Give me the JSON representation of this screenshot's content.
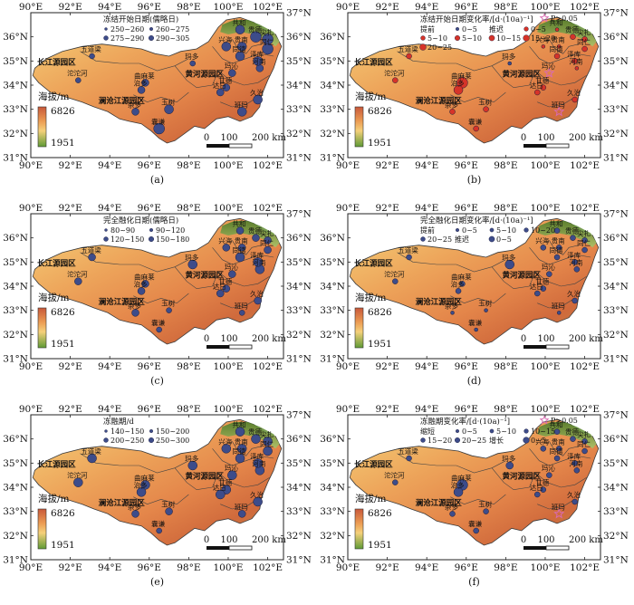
{
  "colors": {
    "terrain_low": "#f2c46b",
    "terrain_mid": "#e98e4a",
    "terrain_high": "#c85a38",
    "terrain_green": "#5d8f2f",
    "terrain_green_light": "#9fc166",
    "marker_blue": "#3d4c8a",
    "marker_red": "#d63329",
    "star_pink": "#d86ab1",
    "outline": "#3a3a3a"
  },
  "axes": {
    "lon_labels": [
      "90°E",
      "92°E",
      "94°E",
      "96°E",
      "98°E",
      "100°E",
      "102°E"
    ],
    "lat_labels_left": [
      "36°N",
      "35°N",
      "34°N",
      "33°N",
      "32°N",
      "31°N"
    ],
    "lat_labels_right": [
      "37°N",
      "36°N",
      "35°N",
      "34°N",
      "33°N",
      "32°N",
      "31°N"
    ]
  },
  "regions": [
    "长江源园区",
    "黄河源园区",
    "澜沧江源园区"
  ],
  "stations": [
    {
      "id": "wudaoliang",
      "name": "五道梁",
      "lon": 93.1,
      "lat": 35.2
    },
    {
      "id": "tuotuohe",
      "name": "沱沱河",
      "lon": 92.4,
      "lat": 34.2
    },
    {
      "id": "qumalai",
      "name": "曲麻莱",
      "lon": 95.8,
      "lat": 34.1
    },
    {
      "id": "zhiduo",
      "name": "治多",
      "lon": 95.6,
      "lat": 33.8
    },
    {
      "id": "zaduo",
      "name": "杂多",
      "lon": 95.3,
      "lat": 32.9
    },
    {
      "id": "yushu",
      "name": "玉树",
      "lon": 97.0,
      "lat": 33.0
    },
    {
      "id": "nangqian",
      "name": "囊谦",
      "lon": 96.5,
      "lat": 32.2
    },
    {
      "id": "madoi",
      "name": "玛多",
      "lon": 98.2,
      "lat": 34.9
    },
    {
      "id": "maqin",
      "name": "玛沁",
      "lon": 100.2,
      "lat": 34.5
    },
    {
      "id": "gande",
      "name": "甘德",
      "lon": 99.9,
      "lat": 33.9
    },
    {
      "id": "dari",
      "name": "达日",
      "lon": 99.6,
      "lat": 33.7
    },
    {
      "id": "jiuzhi",
      "name": "久治",
      "lon": 101.5,
      "lat": 33.4
    },
    {
      "id": "banma",
      "name": "班玛",
      "lon": 100.7,
      "lat": 32.9
    },
    {
      "id": "henan",
      "name": "河南",
      "lon": 101.6,
      "lat": 34.7
    },
    {
      "id": "tongde",
      "name": "同德",
      "lon": 100.6,
      "lat": 35.2
    },
    {
      "id": "zeku",
      "name": "泽库",
      "lon": 101.5,
      "lat": 35.0
    },
    {
      "id": "xinghai",
      "name": "兴海",
      "lon": 99.9,
      "lat": 35.6
    },
    {
      "id": "gonghe",
      "name": "共和",
      "lon": 100.6,
      "lat": 36.3
    },
    {
      "id": "guinan",
      "name": "贵南",
      "lon": 100.7,
      "lat": 35.6
    },
    {
      "id": "guide",
      "name": "贵德",
      "lon": 101.4,
      "lat": 36.0
    },
    {
      "id": "jianzha",
      "name": "尖扎",
      "lon": 102.0,
      "lat": 35.9
    },
    {
      "id": "tongren",
      "name": "同仁",
      "lon": 102.0,
      "lat": 35.5
    }
  ],
  "elevation": {
    "title": "海拔/m",
    "max": "6826",
    "min": "1951"
  },
  "scalebar": {
    "labels": [
      "0",
      "100",
      "200 km"
    ]
  },
  "panels": [
    {
      "letter": "(a)",
      "legend_title": "冻结开始日期(儒略日)",
      "legend_items": [
        "250~260",
        "260~275",
        "275~290",
        "290~305"
      ],
      "legend_extra": [],
      "markers": [
        {
          "s": "wudaoliang",
          "r": 3,
          "c": "blue"
        },
        {
          "s": "tuotuohe",
          "r": 3,
          "c": "blue"
        },
        {
          "s": "qumalai",
          "r": 4,
          "c": "blue"
        },
        {
          "s": "zhiduo",
          "r": 4,
          "c": "blue"
        },
        {
          "s": "zaduo",
          "r": 4,
          "c": "blue"
        },
        {
          "s": "yushu",
          "r": 5,
          "c": "blue"
        },
        {
          "s": "nangqian",
          "r": 6,
          "c": "blue"
        },
        {
          "s": "madoi",
          "r": 3,
          "c": "blue"
        },
        {
          "s": "maqin",
          "r": 4,
          "c": "blue"
        },
        {
          "s": "gande",
          "r": 4,
          "c": "blue"
        },
        {
          "s": "dari",
          "r": 4,
          "c": "blue"
        },
        {
          "s": "jiuzhi",
          "r": 5,
          "c": "blue"
        },
        {
          "s": "banma",
          "r": 5,
          "c": "blue"
        },
        {
          "s": "henan",
          "r": 4,
          "c": "blue"
        },
        {
          "s": "tongde",
          "r": 5,
          "c": "blue"
        },
        {
          "s": "zeku",
          "r": 5,
          "c": "blue"
        },
        {
          "s": "xinghai",
          "r": 5,
          "c": "blue"
        },
        {
          "s": "gonghe",
          "r": 5,
          "c": "blue"
        },
        {
          "s": "guinan",
          "r": 5,
          "c": "blue"
        },
        {
          "s": "guide",
          "r": 6,
          "c": "blue"
        },
        {
          "s": "jianzha",
          "r": 6,
          "c": "blue"
        },
        {
          "s": "tongren",
          "r": 6,
          "c": "blue"
        }
      ]
    },
    {
      "letter": "(b)",
      "legend_title": "冻结开始日期变化率/[d·(10a)⁻¹]",
      "legend_items": [
        "提前",
        "0~5",
        "推迟",
        "0~5",
        "5~10",
        "5~10",
        "10~15",
        "15~20",
        "20~25"
      ],
      "legend_extra": [
        "P>0.05"
      ],
      "markers": [
        {
          "s": "wudaoliang",
          "r": 3,
          "c": "red"
        },
        {
          "s": "tuotuohe",
          "r": 3,
          "c": "red"
        },
        {
          "s": "qumalai",
          "r": 6,
          "c": "red"
        },
        {
          "s": "zhiduo",
          "r": 5,
          "c": "red"
        },
        {
          "s": "zaduo",
          "r": 3,
          "c": "red"
        },
        {
          "s": "yushu",
          "r": 3,
          "c": "red"
        },
        {
          "s": "nangqian",
          "r": 3,
          "c": "red"
        },
        {
          "s": "madoi",
          "r": 2,
          "c": "blue"
        },
        {
          "s": "maqin",
          "r": 3,
          "c": "star"
        },
        {
          "s": "gande",
          "r": 3,
          "c": "red"
        },
        {
          "s": "dari",
          "r": 3,
          "c": "red"
        },
        {
          "s": "jiuzhi",
          "r": 3,
          "c": "red"
        },
        {
          "s": "banma",
          "r": 3,
          "c": "star"
        },
        {
          "s": "henan",
          "r": 2,
          "c": "red"
        },
        {
          "s": "tongde",
          "r": 3,
          "c": "red"
        },
        {
          "s": "zeku",
          "r": 3,
          "c": "red"
        },
        {
          "s": "xinghai",
          "r": 2,
          "c": "red"
        },
        {
          "s": "gonghe",
          "r": 2,
          "c": "red"
        },
        {
          "s": "guinan",
          "r": 2,
          "c": "red"
        },
        {
          "s": "guide",
          "r": 3,
          "c": "red"
        },
        {
          "s": "jianzha",
          "r": 3,
          "c": "red"
        },
        {
          "s": "tongren",
          "r": 3,
          "c": "red"
        }
      ]
    },
    {
      "letter": "(c)",
      "legend_title": "完全融化日期(儒略日)",
      "legend_items": [
        "80~90",
        "90~120",
        "120~150",
        "150~180"
      ],
      "legend_extra": [],
      "markers": [
        {
          "s": "wudaoliang",
          "r": 4,
          "c": "blue"
        },
        {
          "s": "tuotuohe",
          "r": 4,
          "c": "blue"
        },
        {
          "s": "qumalai",
          "r": 4,
          "c": "blue"
        },
        {
          "s": "zhiduo",
          "r": 4,
          "c": "blue"
        },
        {
          "s": "zaduo",
          "r": 4,
          "c": "blue"
        },
        {
          "s": "yushu",
          "r": 3,
          "c": "blue"
        },
        {
          "s": "nangqian",
          "r": 3,
          "c": "blue"
        },
        {
          "s": "madoi",
          "r": 5,
          "c": "blue"
        },
        {
          "s": "maqin",
          "r": 4,
          "c": "blue"
        },
        {
          "s": "gande",
          "r": 4,
          "c": "blue"
        },
        {
          "s": "dari",
          "r": 4,
          "c": "blue"
        },
        {
          "s": "jiuzhi",
          "r": 4,
          "c": "blue"
        },
        {
          "s": "banma",
          "r": 3,
          "c": "blue"
        },
        {
          "s": "henan",
          "r": 5,
          "c": "blue"
        },
        {
          "s": "tongde",
          "r": 5,
          "c": "blue"
        },
        {
          "s": "zeku",
          "r": 5,
          "c": "blue"
        },
        {
          "s": "xinghai",
          "r": 4,
          "c": "blue"
        },
        {
          "s": "gonghe",
          "r": 4,
          "c": "blue"
        },
        {
          "s": "guinan",
          "r": 4,
          "c": "blue"
        },
        {
          "s": "guide",
          "r": 4,
          "c": "blue"
        },
        {
          "s": "jianzha",
          "r": 4,
          "c": "blue"
        },
        {
          "s": "tongren",
          "r": 4,
          "c": "blue"
        }
      ]
    },
    {
      "letter": "(d)",
      "legend_title": "完全融化日期变化率/[d·(10a)⁻¹]",
      "legend_items": [
        "提前",
        "0~5",
        "5~10",
        "10~20",
        "20~25",
        "推迟",
        "0~5"
      ],
      "legend_extra": [],
      "markers": [
        {
          "s": "wudaoliang",
          "r": 3,
          "c": "blue"
        },
        {
          "s": "tuotuohe",
          "r": 3,
          "c": "blue"
        },
        {
          "s": "qumalai",
          "r": 3,
          "c": "blue"
        },
        {
          "s": "zhiduo",
          "r": 3,
          "c": "blue"
        },
        {
          "s": "zaduo",
          "r": 2,
          "c": "blue"
        },
        {
          "s": "yushu",
          "r": 2,
          "c": "blue"
        },
        {
          "s": "nangqian",
          "r": 2,
          "c": "blue"
        },
        {
          "s": "madoi",
          "r": 5,
          "c": "blue"
        },
        {
          "s": "maqin",
          "r": 3,
          "c": "blue"
        },
        {
          "s": "gande",
          "r": 3,
          "c": "blue"
        },
        {
          "s": "dari",
          "r": 3,
          "c": "blue"
        },
        {
          "s": "jiuzhi",
          "r": 3,
          "c": "blue"
        },
        {
          "s": "banma",
          "r": 2,
          "c": "blue"
        },
        {
          "s": "henan",
          "r": 3,
          "c": "blue"
        },
        {
          "s": "tongde",
          "r": 3,
          "c": "blue"
        },
        {
          "s": "zeku",
          "r": 3,
          "c": "blue"
        },
        {
          "s": "xinghai",
          "r": 3,
          "c": "blue"
        },
        {
          "s": "gonghe",
          "r": 3,
          "c": "blue"
        },
        {
          "s": "guinan",
          "r": 3,
          "c": "blue"
        },
        {
          "s": "guide",
          "r": 3,
          "c": "blue"
        },
        {
          "s": "jianzha",
          "r": 3,
          "c": "blue"
        },
        {
          "s": "tongren",
          "r": 3,
          "c": "blue"
        }
      ]
    },
    {
      "letter": "(e)",
      "legend_title": "冻融期/d",
      "legend_items": [
        "140~150",
        "150~200",
        "200~250",
        "250~300"
      ],
      "legend_extra": [],
      "markers": [
        {
          "s": "wudaoliang",
          "r": 5,
          "c": "blue"
        },
        {
          "s": "tuotuohe",
          "r": 5,
          "c": "blue"
        },
        {
          "s": "qumalai",
          "r": 5,
          "c": "blue"
        },
        {
          "s": "zhiduo",
          "r": 5,
          "c": "blue"
        },
        {
          "s": "zaduo",
          "r": 4,
          "c": "blue"
        },
        {
          "s": "yushu",
          "r": 4,
          "c": "blue"
        },
        {
          "s": "nangqian",
          "r": 3,
          "c": "blue"
        },
        {
          "s": "madoi",
          "r": 5,
          "c": "blue"
        },
        {
          "s": "maqin",
          "r": 5,
          "c": "blue"
        },
        {
          "s": "gande",
          "r": 5,
          "c": "blue"
        },
        {
          "s": "dari",
          "r": 5,
          "c": "blue"
        },
        {
          "s": "jiuzhi",
          "r": 5,
          "c": "blue"
        },
        {
          "s": "banma",
          "r": 4,
          "c": "blue"
        },
        {
          "s": "henan",
          "r": 5,
          "c": "blue"
        },
        {
          "s": "tongde",
          "r": 5,
          "c": "blue"
        },
        {
          "s": "zeku",
          "r": 5,
          "c": "blue"
        },
        {
          "s": "xinghai",
          "r": 5,
          "c": "blue"
        },
        {
          "s": "gonghe",
          "r": 5,
          "c": "blue"
        },
        {
          "s": "guinan",
          "r": 5,
          "c": "blue"
        },
        {
          "s": "guide",
          "r": 5,
          "c": "blue"
        },
        {
          "s": "jianzha",
          "r": 5,
          "c": "blue"
        },
        {
          "s": "tongren",
          "r": 5,
          "c": "blue"
        }
      ]
    },
    {
      "letter": "(f)",
      "legend_title": "冻融期变化率/[d·(10a)⁻¹]",
      "legend_items": [
        "缩短",
        "0~5",
        "5~10",
        "10~15",
        "15~20",
        "20~25",
        "增长",
        "0~5"
      ],
      "legend_extra": [
        "P>0.05"
      ],
      "markers": [
        {
          "s": "wudaoliang",
          "r": 3,
          "c": "blue"
        },
        {
          "s": "tuotuohe",
          "r": 3,
          "c": "blue"
        },
        {
          "s": "qumalai",
          "r": 6,
          "c": "blue"
        },
        {
          "s": "zhiduo",
          "r": 5,
          "c": "blue"
        },
        {
          "s": "zaduo",
          "r": 3,
          "c": "blue"
        },
        {
          "s": "yushu",
          "r": 3,
          "c": "blue"
        },
        {
          "s": "nangqian",
          "r": 3,
          "c": "blue"
        },
        {
          "s": "madoi",
          "r": 4,
          "c": "blue"
        },
        {
          "s": "maqin",
          "r": 3,
          "c": "blue"
        },
        {
          "s": "gande",
          "r": 3,
          "c": "blue"
        },
        {
          "s": "dari",
          "r": 3,
          "c": "blue"
        },
        {
          "s": "jiuzhi",
          "r": 3,
          "c": "blue"
        },
        {
          "s": "banma",
          "r": 3,
          "c": "star"
        },
        {
          "s": "henan",
          "r": 3,
          "c": "blue"
        },
        {
          "s": "tongde",
          "r": 3,
          "c": "blue"
        },
        {
          "s": "zeku",
          "r": 3,
          "c": "blue"
        },
        {
          "s": "xinghai",
          "r": 3,
          "c": "blue"
        },
        {
          "s": "gonghe",
          "r": 3,
          "c": "blue"
        },
        {
          "s": "guinan",
          "r": 3,
          "c": "blue"
        },
        {
          "s": "guide",
          "r": 3,
          "c": "blue"
        },
        {
          "s": "jianzha",
          "r": 3,
          "c": "blue"
        },
        {
          "s": "tongren",
          "r": 3,
          "c": "blue"
        }
      ]
    }
  ]
}
